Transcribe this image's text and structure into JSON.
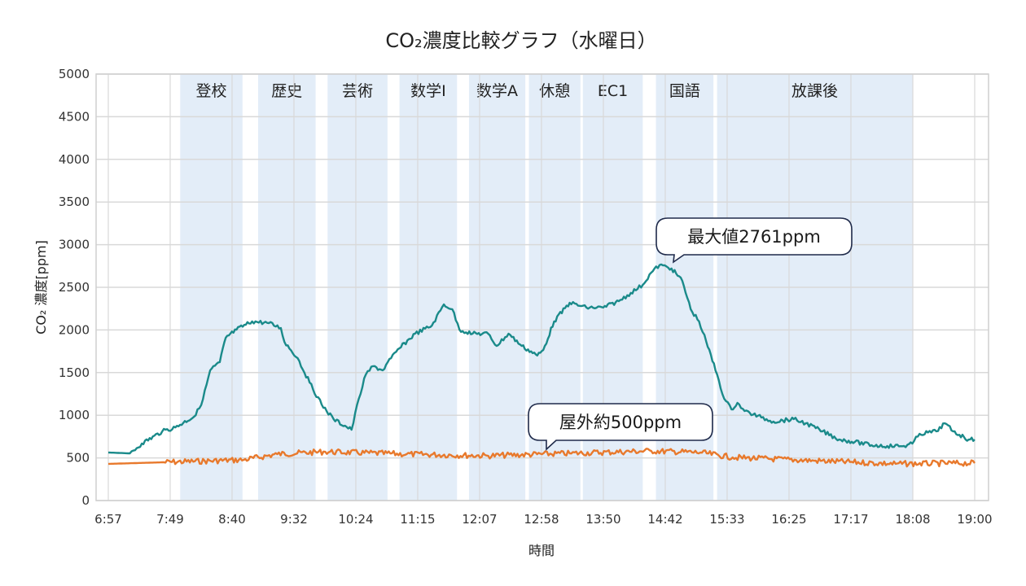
{
  "chart_data": {
    "type": "line",
    "title": "CO₂濃度比較グラフ（水曜日）",
    "xlabel": "時間",
    "ylabel": "CO₂ 濃度[ppm]",
    "xlim": [
      "6:57",
      "19:00"
    ],
    "ylim": [
      0,
      5000
    ],
    "x_ticks": [
      "6:57",
      "7:49",
      "8:40",
      "9:32",
      "10:24",
      "11:15",
      "12:07",
      "12:58",
      "13:50",
      "14:42",
      "15:33",
      "16:25",
      "17:17",
      "18:08",
      "19:00"
    ],
    "y_ticks": [
      0,
      500,
      1000,
      1500,
      2000,
      2500,
      3000,
      3500,
      4000,
      4500,
      5000
    ],
    "grid": true,
    "colors": {
      "indoor": "#1a8a8a",
      "outdoor": "#e8792c",
      "period_band": "#e3edf8"
    },
    "periods": [
      {
        "label": "登校",
        "start": "7:57",
        "end": "8:49"
      },
      {
        "label": "歴史",
        "start": "9:02",
        "end": "9:50"
      },
      {
        "label": "芸術",
        "start": "10:00",
        "end": "10:50"
      },
      {
        "label": "数学Ⅰ",
        "start": "11:00",
        "end": "11:48"
      },
      {
        "label": "数学A",
        "start": "11:58",
        "end": "12:45"
      },
      {
        "label": "休憩",
        "start": "12:48",
        "end": "13:31"
      },
      {
        "label": "EC1",
        "start": "13:33",
        "end": "14:23"
      },
      {
        "label": "国語",
        "start": "14:34",
        "end": "15:22"
      },
      {
        "label": "放課後",
        "start": "15:25",
        "end": "18:08"
      }
    ],
    "series": [
      {
        "key": "indoor",
        "points": [
          [
            "6:57",
            563
          ],
          [
            "7:15",
            553
          ],
          [
            "7:25",
            668
          ],
          [
            "7:42",
            810
          ],
          [
            "7:53",
            858
          ],
          [
            "8:10",
            1000
          ],
          [
            "8:16",
            1190
          ],
          [
            "8:22",
            1527
          ],
          [
            "8:30",
            1622
          ],
          [
            "8:35",
            1908
          ],
          [
            "8:44",
            2004
          ],
          [
            "8:57",
            2100
          ],
          [
            "9:11",
            2080
          ],
          [
            "9:21",
            2023
          ],
          [
            "9:24",
            1860
          ],
          [
            "9:35",
            1670
          ],
          [
            "9:45",
            1384
          ],
          [
            "9:55",
            1126
          ],
          [
            "10:05",
            954
          ],
          [
            "10:20",
            830
          ],
          [
            "10:26",
            1193
          ],
          [
            "10:32",
            1480
          ],
          [
            "10:38",
            1575
          ],
          [
            "10:46",
            1527
          ],
          [
            "10:53",
            1670
          ],
          [
            "11:00",
            1785
          ],
          [
            "11:13",
            1956
          ],
          [
            "11:27",
            2050
          ],
          [
            "11:37",
            2300
          ],
          [
            "11:44",
            2243
          ],
          [
            "11:50",
            2004
          ],
          [
            "12:01",
            1956
          ],
          [
            "12:14",
            1956
          ],
          [
            "12:21",
            1813
          ],
          [
            "12:31",
            1956
          ],
          [
            "12:42",
            1813
          ],
          [
            "12:55",
            1700
          ],
          [
            "13:00",
            1765
          ],
          [
            "13:09",
            2100
          ],
          [
            "13:22",
            2319
          ],
          [
            "13:36",
            2262
          ],
          [
            "13:50",
            2262
          ],
          [
            "14:03",
            2338
          ],
          [
            "14:13",
            2434
          ],
          [
            "14:23",
            2529
          ],
          [
            "14:30",
            2672
          ],
          [
            "14:37",
            2761
          ],
          [
            "14:47",
            2720
          ],
          [
            "14:56",
            2576
          ],
          [
            "15:03",
            2243
          ],
          [
            "15:10",
            2100
          ],
          [
            "15:16",
            1860
          ],
          [
            "15:25",
            1480
          ],
          [
            "15:31",
            1193
          ],
          [
            "15:37",
            1069
          ],
          [
            "15:42",
            1145
          ],
          [
            "15:48",
            1050
          ],
          [
            "16:02",
            973
          ],
          [
            "16:12",
            926
          ],
          [
            "16:29",
            954
          ],
          [
            "16:39",
            906
          ],
          [
            "16:53",
            811
          ],
          [
            "17:07",
            716
          ],
          [
            "17:20",
            687
          ],
          [
            "17:34",
            649
          ],
          [
            "17:47",
            639
          ],
          [
            "18:01",
            639
          ],
          [
            "18:08",
            668
          ],
          [
            "18:14",
            782
          ],
          [
            "18:28",
            811
          ],
          [
            "18:35",
            906
          ],
          [
            "18:42",
            811
          ],
          [
            "18:55",
            715
          ],
          [
            "19:00",
            715
          ]
        ]
      },
      {
        "key": "outdoor",
        "points": [
          [
            "6:57",
            430
          ],
          [
            "7:42",
            448
          ],
          [
            "8:50",
            477
          ],
          [
            "9:18",
            544
          ],
          [
            "9:58",
            572
          ],
          [
            "11:06",
            544
          ],
          [
            "12:14",
            525
          ],
          [
            "13:22",
            553
          ],
          [
            "14:30",
            582
          ],
          [
            "15:11",
            563
          ],
          [
            "15:38",
            506
          ],
          [
            "16:46",
            467
          ],
          [
            "17:54",
            430
          ],
          [
            "19:00",
            439
          ]
        ]
      }
    ],
    "annotations": [
      {
        "text": "最大値2761ppm",
        "time": "14:37",
        "value": 2761
      },
      {
        "text": "屋外約500ppm",
        "time": "13:00",
        "value": 540
      }
    ]
  }
}
